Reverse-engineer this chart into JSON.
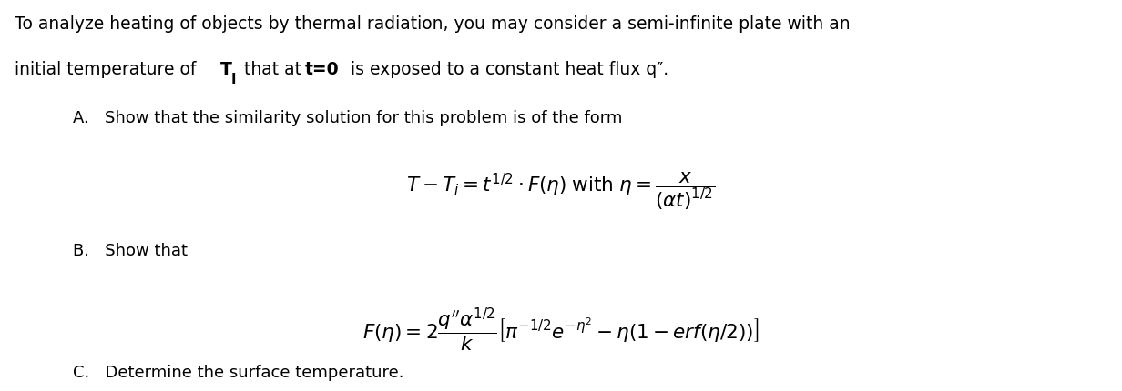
{
  "background_color": "#ffffff",
  "figsize": [
    12.32,
    4.31
  ],
  "dpi": 100,
  "line1": "To analyze heating of objects by thermal radiation, you may consider a semi-infinite plate with an",
  "line2_plain": "initial temperature of ",
  "line2_bold1": "T",
  "line2_sub1": "i",
  "line2_mid": " that at ",
  "line2_bold2": "t=0",
  "line2_end": " is exposed to a constant heat flux q″.",
  "lineA": "A.   Show that the similarity solution for this problem is of the form",
  "eq1": "$T - T_i = t^{1/2} \\cdot F(\\eta) \\; \\mathrm{with} \\; \\eta = \\dfrac{x}{(\\alpha t)^{1/2}}$",
  "lineB": "B.   Show that",
  "eq2": "$F(\\eta) = 2\\dfrac{q^{\\prime\\prime}\\alpha^{1/2}}{k}\\left[\\pi^{-1/2}e^{-\\eta^2} - \\eta\\left(1 - erf(\\eta / 2)\\right)\\right]$",
  "lineC": "C.   Determine the surface temperature.",
  "fontsize_main": 13.5,
  "fontsize_sub": 13.0,
  "fontsize_eq": 15.5
}
